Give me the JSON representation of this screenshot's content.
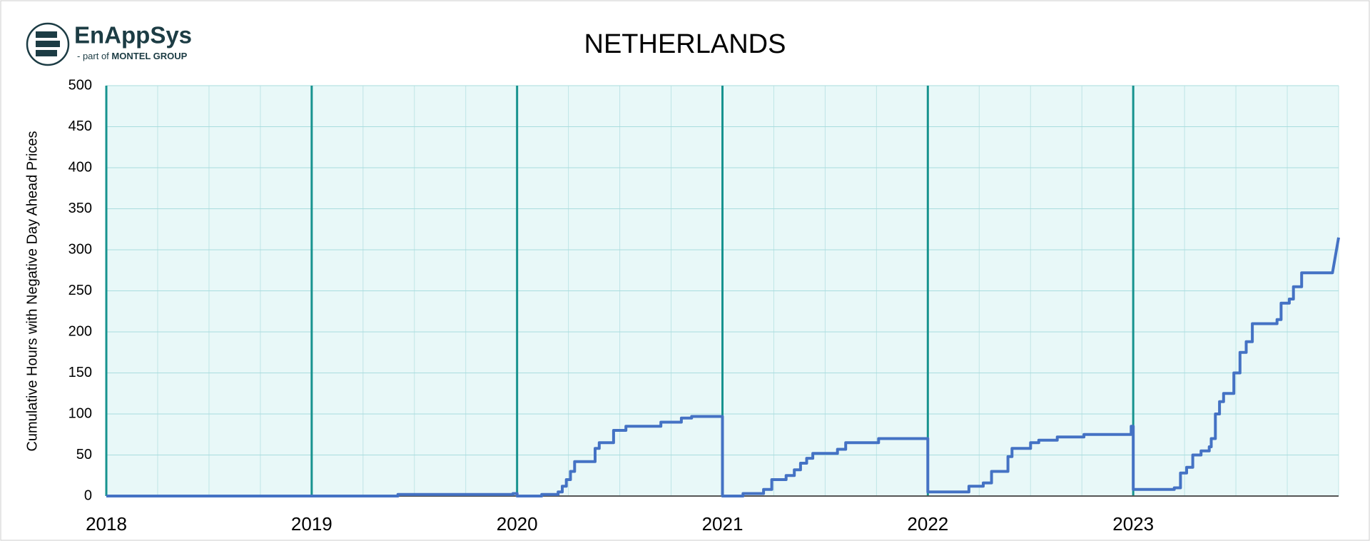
{
  "logo": {
    "name": "EnAppSys",
    "tagline_prefix": "- part of",
    "tagline_brand": "MONTEL GROUP"
  },
  "chart_data": {
    "type": "line",
    "title": "NETHERLANDS",
    "y_label": "Cumulative Hours with Negative Day Ahead Prices",
    "xlim": [
      2018,
      2024
    ],
    "xticks": [
      2018,
      2019,
      2020,
      2021,
      2022,
      2023
    ],
    "ylim": [
      0,
      500
    ],
    "yticks": [
      0,
      50,
      100,
      150,
      200,
      250,
      300,
      350,
      400,
      450,
      500
    ],
    "grid": true,
    "minor_grid_step": 0.25,
    "series": [
      {
        "color": "#4472c4",
        "x": [
          2018,
          2019.42,
          2019.42,
          2019.98,
          2019.98,
          2020,
          2020,
          2020.12,
          2020.12,
          2020.2,
          2020.2,
          2020.22,
          2020.22,
          2020.24,
          2020.24,
          2020.26,
          2020.26,
          2020.28,
          2020.28,
          2020.38,
          2020.38,
          2020.4,
          2020.4,
          2020.47,
          2020.47,
          2020.53,
          2020.53,
          2020.7,
          2020.7,
          2020.8,
          2020.8,
          2020.85,
          2020.85,
          2021,
          2021,
          2021.1,
          2021.1,
          2021.2,
          2021.2,
          2021.24,
          2021.24,
          2021.31,
          2021.31,
          2021.35,
          2021.35,
          2021.38,
          2021.38,
          2021.41,
          2021.41,
          2021.44,
          2021.44,
          2021.56,
          2021.56,
          2021.6,
          2021.6,
          2021.76,
          2021.76,
          2022,
          2022,
          2022.2,
          2022.2,
          2022.27,
          2022.27,
          2022.31,
          2022.31,
          2022.39,
          2022.39,
          2022.41,
          2022.41,
          2022.5,
          2022.5,
          2022.54,
          2022.54,
          2022.63,
          2022.63,
          2022.76,
          2022.76,
          2022.99,
          2022.99,
          2023,
          2023,
          2023.2,
          2023.2,
          2023.23,
          2023.23,
          2023.26,
          2023.26,
          2023.29,
          2023.29,
          2023.33,
          2023.33,
          2023.37,
          2023.37,
          2023.38,
          2023.38,
          2023.4,
          2023.4,
          2023.42,
          2023.42,
          2023.44,
          2023.44,
          2023.49,
          2023.49,
          2023.52,
          2023.52,
          2023.55,
          2023.55,
          2023.58,
          2023.58,
          2023.7,
          2023.7,
          2023.72,
          2023.72,
          2023.76,
          2023.76,
          2023.78,
          2023.78,
          2023.82,
          2023.82,
          2023.97,
          2024
        ],
        "values": [
          0,
          0,
          2,
          2,
          3,
          3,
          0,
          0,
          2,
          2,
          5,
          5,
          12,
          12,
          20,
          20,
          30,
          30,
          42,
          42,
          58,
          58,
          65,
          65,
          80,
          80,
          85,
          85,
          90,
          90,
          95,
          95,
          97,
          97,
          0,
          0,
          3,
          3,
          8,
          8,
          20,
          20,
          25,
          25,
          32,
          32,
          40,
          40,
          46,
          46,
          52,
          52,
          57,
          57,
          65,
          65,
          70,
          70,
          5,
          5,
          12,
          12,
          16,
          16,
          30,
          30,
          48,
          48,
          58,
          58,
          65,
          65,
          68,
          68,
          72,
          72,
          75,
          75,
          85,
          85,
          8,
          8,
          10,
          10,
          28,
          28,
          35,
          35,
          50,
          50,
          55,
          55,
          60,
          60,
          70,
          70,
          100,
          100,
          115,
          115,
          125,
          125,
          150,
          150,
          175,
          175,
          188,
          188,
          210,
          210,
          215,
          215,
          235,
          235,
          240,
          240,
          255,
          255,
          272,
          272,
          315
        ]
      }
    ]
  }
}
